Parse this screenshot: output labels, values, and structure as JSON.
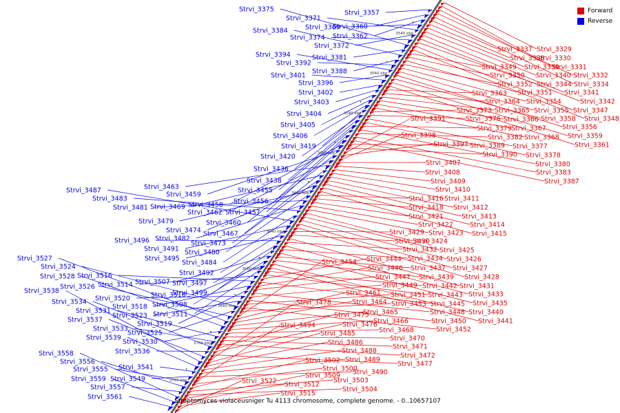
{
  "legend": {
    "forward_label": "Forward",
    "reverse_label": "Reverse"
  },
  "colors": {
    "forward": "#e00000",
    "reverse": "#0000e6",
    "axis": "#606060"
  },
  "caption": "Streptomyces violaceusniger Tu 4113 chromosome, complete genome. - 0..10657107",
  "scale_labels": [
    "3540 kbp",
    "3560 kbp",
    "3580 kbp",
    "3600 kbp",
    "3620 kbp",
    "3640 kbp",
    "3660 kbp",
    "3680 kbp",
    "3700 kbp",
    "3720 kbp"
  ],
  "reverse_genes": [
    "Strvi_3357",
    "Strvi_3360",
    "Strvi_3362",
    "Strvi_3369",
    "Strvi_3371",
    "Strvi_3372",
    "Strvi_3374",
    "Strvi_3375",
    "Strvi_3381",
    "Strvi_3384",
    "Strvi_3388",
    "Strvi_3392",
    "Strvi_3394",
    "Strvi_3396",
    "Strvi_3401",
    "Strvi_3402",
    "Strvi_3403",
    "Strvi_3404",
    "Strvi_3405",
    "Strvi_3406",
    "Strvi_3419",
    "Strvi_3420",
    "Strvi_3436",
    "Strvi_3438",
    "Strvi_3455",
    "Strvi_3456",
    "Strvi_3457",
    "Strvi_3458",
    "Strvi_3459",
    "Strvi_3460",
    "Strvi_3462",
    "Strvi_3463",
    "Strvi_3467",
    "Strvi_3469",
    "Strvi_3473",
    "Strvi_3474",
    "Strvi_3479",
    "Strvi_3480",
    "Strvi_3481",
    "Strvi_3482",
    "Strvi_3483",
    "Strvi_3484",
    "Strvi_3487",
    "Strvi_3491",
    "Strvi_3492",
    "Strvi_3495",
    "Strvi_3496",
    "Strvi_3497",
    "Strvi_3499",
    "Strvi_3507",
    "Strvi_3508",
    "Strvi_3510",
    "Strvi_3511",
    "Strvi_3514",
    "Strvi_3516",
    "Strvi_3518",
    "Strvi_3519",
    "Strvi_3520",
    "Strvi_3523",
    "Strvi_3524",
    "Strvi_3525",
    "Strvi_3526",
    "Strvi_3527",
    "Strvi_3528",
    "Strvi_3530",
    "Strvi_3531",
    "Strvi_3533",
    "Strvi_3534",
    "Strvi_3536",
    "Strvi_3537",
    "Strvi_3538",
    "Strvi_3539",
    "Strvi_3541",
    "Strvi_3549",
    "Strvi_3555",
    "Strvi_3556",
    "Strvi_3557",
    "Strvi_3558",
    "Strvi_3559",
    "Strvi_3561"
  ],
  "forward_genes": [
    "Strvi_3329",
    "Strvi_3330",
    "Strvi_3331",
    "Strvi_3332",
    "Strvi_3334",
    "Strvi_3337",
    "Strvi_3338",
    "Strvi_3339",
    "Strvi_3340",
    "Strvi_3341",
    "Strvi_3342",
    "Strvi_3344",
    "Strvi_3347",
    "Strvi_3348",
    "Strvi_3349",
    "Strvi_3350",
    "Strvi_3351",
    "Strvi_3352",
    "Strvi_3354",
    "Strvi_3355",
    "Strvi_3356",
    "Strvi_3358",
    "Strvi_3359",
    "Strvi_3361",
    "Strvi_3363",
    "Strvi_3364",
    "Strvi_3365",
    "Strvi_3366",
    "Strvi_3367",
    "Strvi_3368",
    "Strvi_3373",
    "Strvi_3376",
    "Strvi_3377",
    "Strvi_3378",
    "Strvi_3379",
    "Strvi_3380",
    "Strvi_3382",
    "Strvi_3383",
    "Strvi_3387",
    "Strvi_3389",
    "Strvi_3390",
    "Strvi_3391",
    "Strvi_3397",
    "Strvi_3398",
    "Strvi_3407",
    "Strvi_3408",
    "Strvi_3409",
    "Strvi_3410",
    "Strvi_3411",
    "Strvi_3412",
    "Strvi_3413",
    "Strvi_3414",
    "Strvi_3415",
    "Strvi_3416",
    "Strvi_3418",
    "Strvi_3421",
    "Strvi_3422",
    "Strvi_3423",
    "Strvi_3424",
    "Strvi_3425",
    "Strvi_3426",
    "Strvi_3427",
    "Strvi_3428",
    "Strvi_3429",
    "Strvi_3430",
    "Strvi_3431",
    "Strvi_3432",
    "Strvi_3433",
    "Strvi_3434",
    "Strvi_3435",
    "Strvi_3437",
    "Strvi_3439",
    "Strvi_3440",
    "Strvi_3441",
    "Strvi_3442",
    "Strvi_3443",
    "Strvi_3444",
    "Strvi_3445",
    "Strvi_3446",
    "Strvi_3447",
    "Strvi_3448",
    "Strvi_3449",
    "Strvi_3450",
    "Strvi_3451",
    "Strvi_3452",
    "Strvi_3453",
    "Strvi_3454",
    "Strvi_3461",
    "Strvi_3464",
    "Strvi_3465",
    "Strvi_3466",
    "Strvi_3468",
    "Strvi_3470",
    "Strvi_3471",
    "Strvi_3472",
    "Strvi_3475",
    "Strvi_3476",
    "Strvi_3477",
    "Strvi_3478",
    "Strvi_3485",
    "Strvi_3486",
    "Strvi_3488",
    "Strvi_3489",
    "Strvi_3490",
    "Strvi_3494",
    "Strvi_3500",
    "Strvi_3502",
    "Strvi_3503",
    "Strvi_3504",
    "Strvi_3509",
    "Strvi_3512",
    "Strvi_3515",
    "Strvi_3522"
  ]
}
